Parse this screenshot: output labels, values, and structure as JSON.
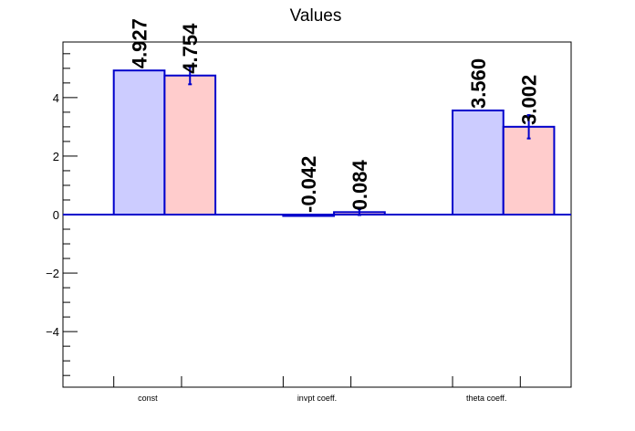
{
  "chart_data": {
    "type": "bar",
    "title": "Values",
    "categories": [
      "const",
      "invpt coeff.",
      "theta coeff."
    ],
    "series": [
      {
        "values": [
          4.927,
          -0.042,
          3.56
        ],
        "value_labels": [
          "4.927",
          "-0.042",
          "3.560"
        ],
        "errors": [
          0,
          0,
          0
        ],
        "color": "#ccccff",
        "edge_color": "#0000cc"
      },
      {
        "values": [
          4.754,
          0.084,
          3.002
        ],
        "value_labels": [
          "4.754",
          "0.084",
          "3.002"
        ],
        "errors": [
          0.3,
          0.1,
          0.4
        ],
        "color": "#ffcccc",
        "edge_color": "#0000cc"
      }
    ],
    "ylim": [
      -5.9,
      5.9
    ],
    "yticks": [
      -4,
      -2,
      0,
      2,
      4
    ],
    "ytick_labels": [
      "−4",
      "−2",
      "0",
      "2",
      "4"
    ],
    "xlabel": "",
    "ylabel": "",
    "grid": false,
    "legend": "none"
  }
}
